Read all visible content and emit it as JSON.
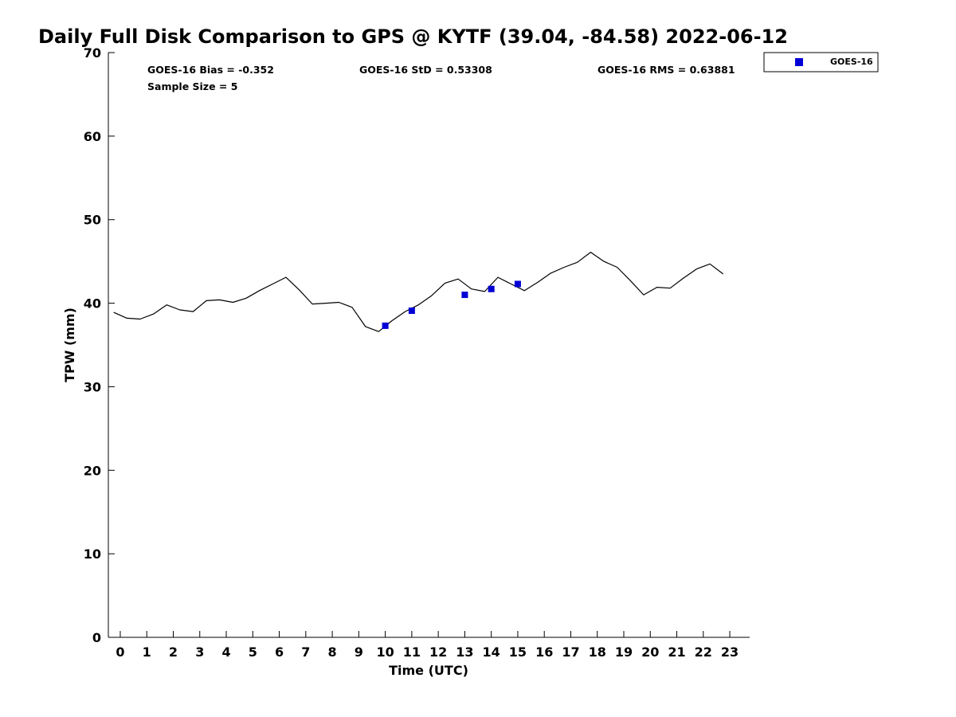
{
  "chart_data": {
    "type": "line",
    "title": "Daily Full Disk Comparison to GPS @ KYTF (39.04, -84.58) 2022-06-12",
    "xlabel": "Time (UTC)",
    "ylabel": "TPW (mm)",
    "xlim": [
      -0.45,
      23.75
    ],
    "ylim": [
      0,
      70
    ],
    "x_ticks": [
      0,
      1,
      2,
      3,
      4,
      5,
      6,
      7,
      8,
      9,
      10,
      11,
      12,
      13,
      14,
      15,
      16,
      17,
      18,
      19,
      20,
      21,
      22,
      23
    ],
    "y_ticks": [
      0,
      10,
      20,
      30,
      40,
      50,
      60,
      70
    ],
    "grid": false,
    "legend_position": "top-right",
    "stats": {
      "bias": "GOES-16 Bias = -0.352",
      "std": "GOES-16 StD = 0.53308",
      "rms": "GOES-16 RMS = 0.63881",
      "sample": "Sample Size = 5"
    },
    "series": [
      {
        "name": "GPS",
        "kind": "line",
        "color": "#000000",
        "x": [
          -0.25,
          0.25,
          0.75,
          1.25,
          1.75,
          2.25,
          2.75,
          3.25,
          3.75,
          4.25,
          4.75,
          5.25,
          5.75,
          6.25,
          6.75,
          7.25,
          7.75,
          8.25,
          8.75,
          9.25,
          9.75,
          10.25,
          10.75,
          11.25,
          11.75,
          12.25,
          12.75,
          13.25,
          13.75,
          14.25,
          14.75,
          15.25,
          15.75,
          16.25,
          16.75,
          17.25,
          17.75,
          18.25,
          18.75,
          19.25,
          19.75,
          20.25,
          20.75,
          21.25,
          21.75,
          22.25,
          22.75
        ],
        "y": [
          38.9,
          38.2,
          38.1,
          38.7,
          39.8,
          39.2,
          39.0,
          40.3,
          40.4,
          40.1,
          40.6,
          41.5,
          42.3,
          43.1,
          41.6,
          39.9,
          40.0,
          40.1,
          39.5,
          37.2,
          36.6,
          37.9,
          39.0,
          39.8,
          40.9,
          42.4,
          42.9,
          41.7,
          41.4,
          43.1,
          42.3,
          41.5,
          42.5,
          43.6,
          44.3,
          44.9,
          46.1,
          45.0,
          44.3,
          42.7,
          41.0,
          41.9,
          41.8,
          43.0,
          44.1,
          44.7,
          43.5
        ]
      },
      {
        "name": "GOES-16",
        "kind": "scatter",
        "color": "#0000d6",
        "x": [
          10,
          11,
          13,
          14,
          15
        ],
        "y": [
          37.3,
          39.1,
          41.0,
          41.7,
          42.3
        ]
      }
    ]
  }
}
